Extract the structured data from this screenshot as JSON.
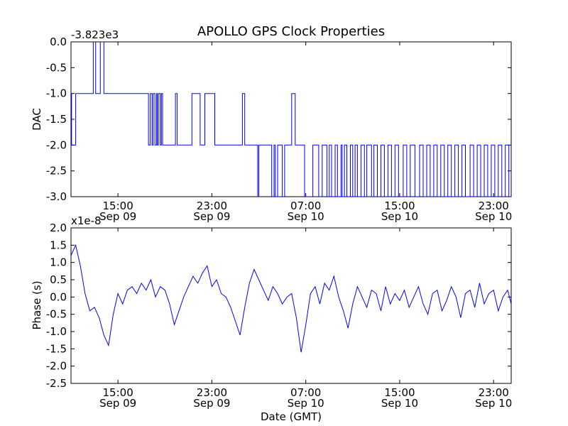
{
  "figure": {
    "title": "APOLLO GPS Clock Properties",
    "xlabel": "Date (GMT)"
  },
  "chart_data": [
    {
      "type": "line",
      "ylabel": "DAC",
      "offset_label": "-3.823e3",
      "x_start": "2011-09-09T11:00",
      "x_end": "2011-09-10T23:30",
      "x_ticks": [
        {
          "time": "15:00",
          "date": "Sep 09",
          "hour": 4
        },
        {
          "time": "23:00",
          "date": "Sep 09",
          "hour": 12
        },
        {
          "time": "07:00",
          "date": "Sep 10",
          "hour": 20
        },
        {
          "time": "15:00",
          "date": "Sep 10",
          "hour": 28
        },
        {
          "time": "23:00",
          "date": "Sep 10",
          "hour": 36
        }
      ],
      "ylim": [
        -3.0,
        0.0
      ],
      "y_ticks": [
        "0.0",
        "-0.5",
        "-1.0",
        "-1.5",
        "-2.0",
        "-2.5",
        "-3.0"
      ],
      "y_tick_values": [
        0.0,
        -0.5,
        -1.0,
        -1.5,
        -2.0,
        -2.5,
        -3.0
      ],
      "series": [
        {
          "color": "#0000ff",
          "step": true,
          "x_hours": [
            0.0,
            0.05,
            0.15,
            0.4,
            1.1,
            1.9,
            2.1,
            2.3,
            2.5,
            2.8,
            3.0,
            6.6,
            6.75,
            6.9,
            7.0,
            7.15,
            7.3,
            7.35,
            7.45,
            7.6,
            7.7,
            7.8,
            7.9,
            8.9,
            9.05,
            10.3,
            11.0,
            11.4,
            12.0,
            12.25,
            12.4,
            14.0,
            14.6,
            14.8,
            15.6,
            15.7,
            15.9,
            16.0,
            16.3,
            17.1,
            17.3,
            17.4,
            17.6,
            17.7,
            18.0,
            18.2,
            18.6,
            18.8,
            19.1,
            19.6,
            19.9,
            20.6,
            21.1,
            21.4,
            21.8,
            22.0,
            22.2,
            22.5,
            22.7,
            23.0,
            23.1,
            23.3,
            23.5,
            23.8,
            24.0,
            24.2,
            24.4,
            24.7,
            25.0,
            25.2,
            25.6,
            25.8,
            26.1,
            26.4,
            26.7,
            27.0,
            27.3,
            27.6,
            27.9,
            28.3,
            28.6,
            28.9,
            29.3,
            29.7,
            30.0,
            30.3,
            30.6,
            30.9,
            31.2,
            31.5,
            31.8,
            32.1,
            32.4,
            32.7,
            33.0,
            33.3,
            33.6,
            34.0,
            34.3,
            34.6,
            34.9,
            35.2,
            35.5,
            35.8,
            36.1,
            36.4,
            36.7,
            37.0,
            37.3,
            37.5
          ],
          "y": [
            -1.0,
            -2.0,
            -2.0,
            -1.0,
            -1.0,
            0.0,
            -1.0,
            -1.0,
            0.0,
            -1.0,
            -1.0,
            -2.0,
            -1.0,
            -2.0,
            -1.0,
            -2.0,
            -1.0,
            -2.0,
            -1.0,
            -2.0,
            -1.0,
            -2.0,
            -2.0,
            -1.0,
            -2.0,
            -1.0,
            -2.0,
            -1.0,
            -1.0,
            -2.0,
            -2.0,
            -2.0,
            -1.0,
            -2.0,
            -2.0,
            -2.0,
            -3.0,
            -2.0,
            -2.0,
            -3.0,
            -2.0,
            -3.0,
            -2.0,
            -2.0,
            -3.0,
            -2.0,
            -2.0,
            -1.0,
            -2.0,
            -2.0,
            -3.0,
            -2.0,
            -3.0,
            -2.0,
            -3.0,
            -2.0,
            -3.0,
            -2.0,
            -3.0,
            -2.0,
            -3.0,
            -2.0,
            -3.0,
            -2.0,
            -3.0,
            -2.0,
            -3.0,
            -2.0,
            -3.0,
            -2.0,
            -3.0,
            -2.0,
            -3.0,
            -2.0,
            -3.0,
            -2.0,
            -3.0,
            -2.0,
            -3.0,
            -2.0,
            -3.0,
            -2.0,
            -3.0,
            -2.0,
            -3.0,
            -2.0,
            -3.0,
            -2.0,
            -3.0,
            -2.0,
            -3.0,
            -2.0,
            -3.0,
            -2.0,
            -3.0,
            -2.0,
            -3.0,
            -2.0,
            -3.0,
            -2.0,
            -3.0,
            -2.0,
            -3.0,
            -2.0,
            -3.0,
            -2.0,
            -3.0,
            -2.0,
            -3.0,
            -2.0
          ]
        }
      ]
    },
    {
      "type": "line",
      "ylabel": "Phase (s)",
      "offset_label": "x1e-8",
      "x_start": "2011-09-09T11:00",
      "x_end": "2011-09-10T23:30",
      "x_ticks": [
        {
          "time": "15:00",
          "date": "Sep 09",
          "hour": 4
        },
        {
          "time": "23:00",
          "date": "Sep 09",
          "hour": 12
        },
        {
          "time": "07:00",
          "date": "Sep 10",
          "hour": 20
        },
        {
          "time": "15:00",
          "date": "Sep 10",
          "hour": 28
        },
        {
          "time": "23:00",
          "date": "Sep 10",
          "hour": 36
        }
      ],
      "ylim": [
        -2.5,
        2.0
      ],
      "y_ticks": [
        "2.0",
        "1.5",
        "1.0",
        "0.5",
        "0.0",
        "-0.5",
        "-1.0",
        "-1.5",
        "-2.0",
        "-2.5"
      ],
      "y_tick_values": [
        2.0,
        1.5,
        1.0,
        0.5,
        0.0,
        -0.5,
        -1.0,
        -1.5,
        -2.0,
        -2.5
      ],
      "series": [
        {
          "color": "#0000ff",
          "step": false,
          "x_hours": [
            0.0,
            0.4,
            0.8,
            1.2,
            1.6,
            2.0,
            2.4,
            2.8,
            3.2,
            3.6,
            4.0,
            4.4,
            4.8,
            5.2,
            5.6,
            6.0,
            6.4,
            6.8,
            7.2,
            7.6,
            8.0,
            8.4,
            8.8,
            9.2,
            9.6,
            10.0,
            10.4,
            10.8,
            11.2,
            11.6,
            12.0,
            12.4,
            12.8,
            13.2,
            13.6,
            14.0,
            14.4,
            14.8,
            15.2,
            15.6,
            16.0,
            16.4,
            16.8,
            17.2,
            17.6,
            18.0,
            18.4,
            18.8,
            19.2,
            19.6,
            20.0,
            20.4,
            20.8,
            21.2,
            21.6,
            22.0,
            22.4,
            22.8,
            23.2,
            23.6,
            24.0,
            24.4,
            24.8,
            25.2,
            25.6,
            26.0,
            26.4,
            26.8,
            27.2,
            27.6,
            28.0,
            28.4,
            28.8,
            29.2,
            29.6,
            30.0,
            30.4,
            30.8,
            31.2,
            31.6,
            32.0,
            32.4,
            32.8,
            33.2,
            33.6,
            34.0,
            34.4,
            34.8,
            35.2,
            35.6,
            36.0,
            36.4,
            36.8,
            37.2,
            37.5
          ],
          "y": [
            1.2,
            1.5,
            0.9,
            0.1,
            -0.4,
            -0.3,
            -0.6,
            -1.1,
            -1.4,
            -0.5,
            0.1,
            -0.2,
            0.2,
            0.3,
            0.1,
            0.4,
            0.2,
            0.5,
            0.0,
            0.3,
            0.2,
            -0.2,
            -0.8,
            -0.4,
            0.0,
            0.3,
            0.6,
            0.4,
            0.7,
            0.9,
            0.3,
            0.5,
            0.1,
            0.0,
            -0.3,
            -0.7,
            -1.1,
            -0.3,
            0.4,
            0.8,
            0.5,
            0.2,
            -0.1,
            0.3,
            0.1,
            -0.2,
            0.0,
            0.1,
            -0.6,
            -1.6,
            -0.8,
            0.1,
            0.3,
            -0.2,
            0.4,
            0.2,
            0.6,
            0.0,
            -0.4,
            -0.9,
            -0.2,
            0.3,
            0.0,
            -0.3,
            0.2,
            0.1,
            -0.4,
            0.3,
            -0.2,
            0.1,
            -0.1,
            0.2,
            -0.3,
            0.0,
            0.3,
            -0.2,
            -0.5,
            0.1,
            0.2,
            -0.4,
            -0.1,
            0.3,
            0.0,
            -0.6,
            0.1,
            0.2,
            -0.3,
            0.4,
            -0.2,
            0.1,
            0.2,
            -0.4,
            0.0,
            0.2,
            -0.2
          ]
        }
      ]
    }
  ]
}
